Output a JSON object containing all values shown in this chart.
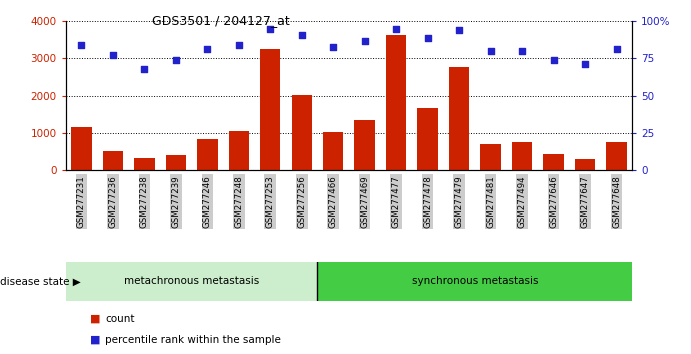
{
  "title": "GDS3501 / 204127_at",
  "samples": [
    "GSM277231",
    "GSM277236",
    "GSM277238",
    "GSM277239",
    "GSM277246",
    "GSM277248",
    "GSM277253",
    "GSM277256",
    "GSM277466",
    "GSM277469",
    "GSM277477",
    "GSM277478",
    "GSM277479",
    "GSM277481",
    "GSM277494",
    "GSM277646",
    "GSM277647",
    "GSM277648"
  ],
  "counts": [
    1150,
    520,
    310,
    390,
    820,
    1060,
    3250,
    2010,
    1010,
    1330,
    3620,
    1660,
    2760,
    700,
    760,
    420,
    300,
    760
  ],
  "percentiles": [
    84,
    77,
    68,
    74,
    81,
    84,
    95,
    91,
    83,
    87,
    95,
    89,
    94,
    80,
    80,
    74,
    71,
    81
  ],
  "group1_label": "metachronous metastasis",
  "group2_label": "synchronous metastasis",
  "group1_count": 8,
  "group2_count": 10,
  "bar_color": "#cc2200",
  "dot_color": "#2222cc",
  "group1_bg": "#cceecc",
  "group2_bg": "#44cc44",
  "ylim_left": [
    0,
    4000
  ],
  "ylim_right": [
    0,
    100
  ],
  "yticks_left": [
    0,
    1000,
    2000,
    3000,
    4000
  ],
  "ytick_labels_left": [
    "0",
    "1000",
    "2000",
    "3000",
    "4000"
  ],
  "yticks_right": [
    0,
    25,
    50,
    75,
    100
  ],
  "ytick_labels_right": [
    "0",
    "25",
    "50",
    "75",
    "100%"
  ],
  "legend_count_label": "count",
  "legend_pct_label": "percentile rank within the sample",
  "disease_state_label": "disease state",
  "xlabel_bg": "#cccccc",
  "white_bg": "#ffffff"
}
